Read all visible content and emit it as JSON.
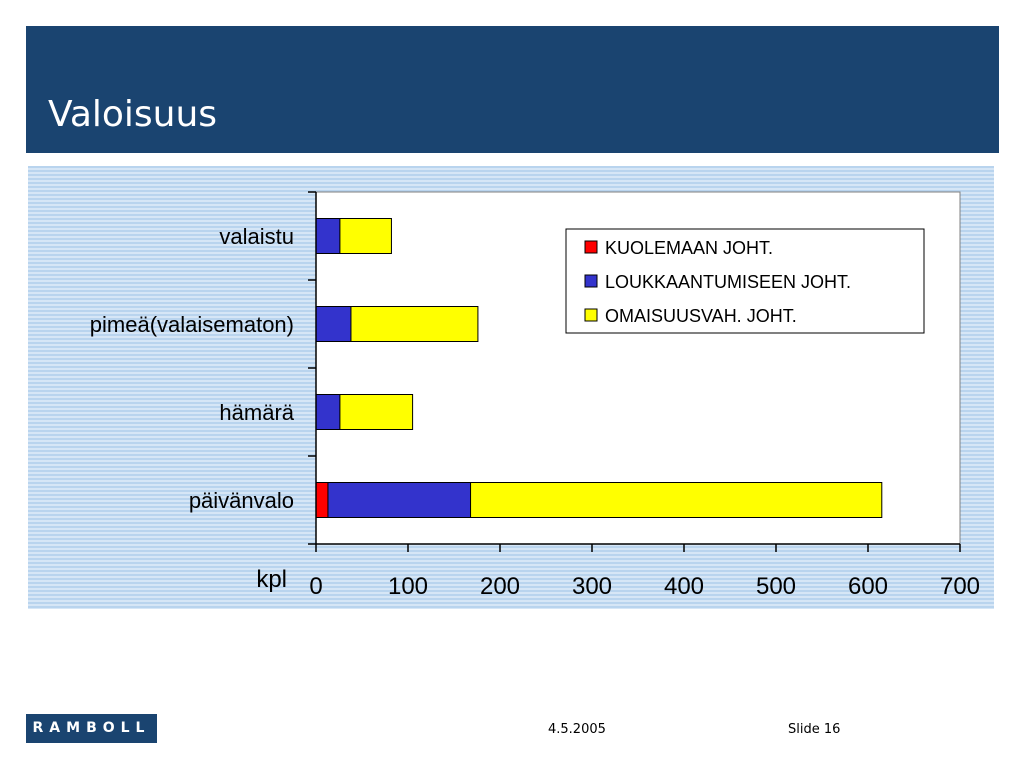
{
  "slide": {
    "title": "Valoisuus",
    "date": "4.5.2005",
    "slide_number": "Slide 16",
    "logo_text": "RAMBOLL"
  },
  "colors": {
    "header": "#1a4470",
    "kuolemaan": "#ff0000",
    "loukkaantumiseen": "#3333cc",
    "omaisuusvah": "#ffff00"
  },
  "chart_data": {
    "type": "bar",
    "orientation": "horizontal",
    "stacked": true,
    "categories": [
      "valaistu",
      "pimeä(valaisematon)",
      "hämärä",
      "päivänvalo"
    ],
    "series": [
      {
        "name": "KUOLEMAAN JOHT.",
        "values": [
          0,
          0,
          0,
          13
        ]
      },
      {
        "name": "LOUKKAANTUMISEEN JOHT.",
        "values": [
          26,
          38,
          26,
          155
        ]
      },
      {
        "name": "OMAISUUSVAH. JOHT.",
        "values": [
          56,
          138,
          79,
          447
        ]
      }
    ],
    "xlabel": "kpl",
    "xlim": [
      0,
      700
    ],
    "xticks": [
      "0",
      "100",
      "200",
      "300",
      "400",
      "500",
      "600",
      "700"
    ],
    "legend_position": "top-right",
    "grid": false
  }
}
